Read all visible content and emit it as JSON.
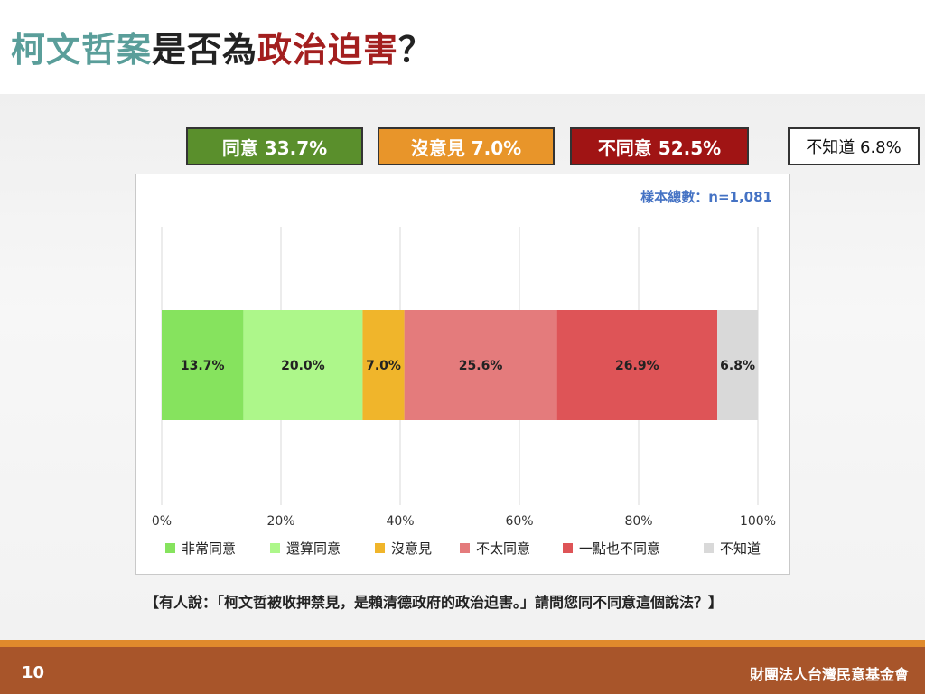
{
  "title": {
    "parts": [
      {
        "text": "柯文哲案",
        "color": "#5a9e9a"
      },
      {
        "text": "是否為",
        "color": "#222222"
      },
      {
        "text": "政治迫害",
        "color": "#a31f1f"
      },
      {
        "text": "？",
        "color": "#222222"
      }
    ]
  },
  "summary": [
    {
      "label": "同意 33.7%",
      "bg": "#5a8f2c",
      "fg": "#ffffff"
    },
    {
      "label": "沒意見 7.0%",
      "bg": "#e8952a",
      "fg": "#ffffff"
    },
    {
      "label": "不同意 52.5%",
      "bg": "#a01414",
      "fg": "#ffffff"
    },
    {
      "label": "不知道 6.8%",
      "bg": "#ffffff",
      "fg": "#111111"
    }
  ],
  "sample_label": "樣本總數：n=1,081",
  "chart_data": {
    "type": "bar",
    "orientation": "horizontal-stacked-100",
    "xlim": [
      0,
      100
    ],
    "ticks": [
      "0%",
      "20%",
      "40%",
      "60%",
      "80%",
      "100%"
    ],
    "grid": true,
    "legend_position": "bottom",
    "series": [
      {
        "name": "非常同意",
        "value": 13.7,
        "label": "13.7%",
        "color": "#86e35e"
      },
      {
        "name": "還算同意",
        "value": 20.0,
        "label": "20.0%",
        "color": "#adf78a"
      },
      {
        "name": "沒意見",
        "value": 7.0,
        "label": "7.0%",
        "color": "#f0b52b"
      },
      {
        "name": "不太同意",
        "value": 25.6,
        "label": "25.6%",
        "color": "#e47b7c"
      },
      {
        "name": "一點也不同意",
        "value": 26.9,
        "label": "26.9%",
        "color": "#de5457"
      },
      {
        "name": "不知道",
        "value": 6.8,
        "label": "6.8%",
        "color": "#d9d9d9"
      }
    ]
  },
  "question": "【有人說：「柯文哲被收押禁見，是賴清德政府的政治迫害。」請問您同不同意這個說法？】",
  "footer": {
    "page_number": "10",
    "org": "財團法人台灣民意基金會"
  }
}
